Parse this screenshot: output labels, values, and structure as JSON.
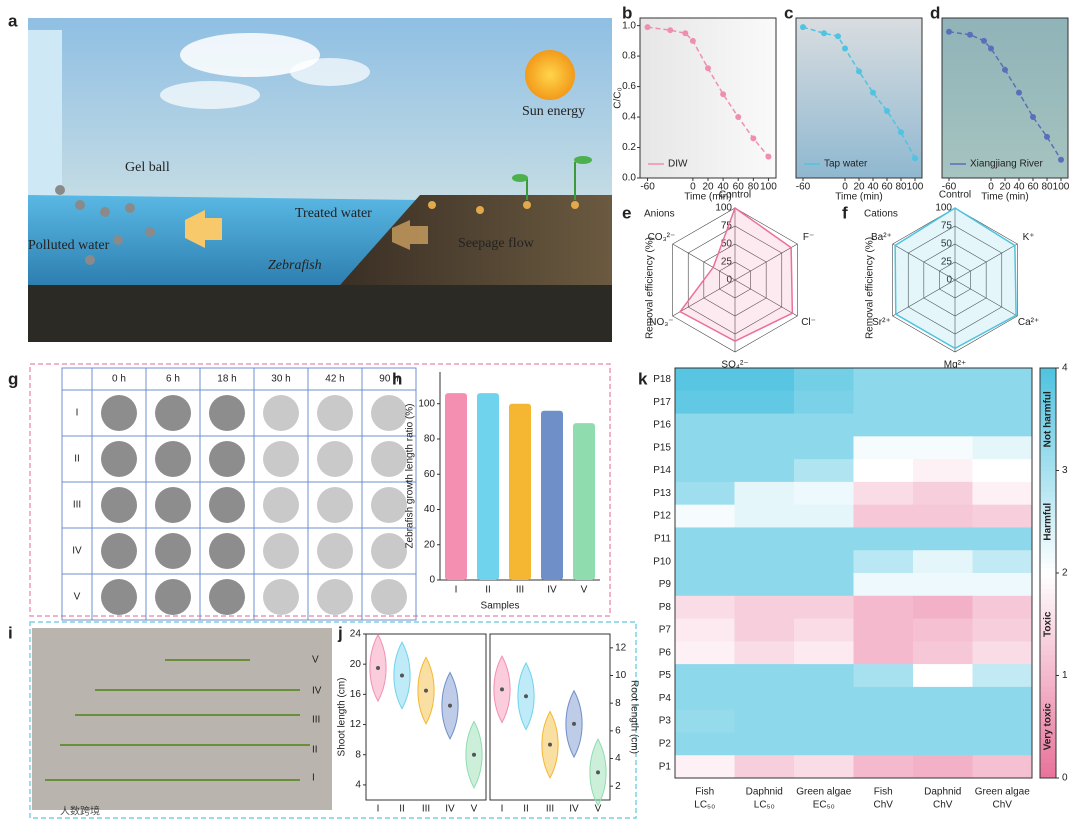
{
  "panel_a": {
    "letter": "a",
    "labels": [
      "Gel ball",
      "Treated water",
      "Sun energy",
      "Polluted water",
      "Zebrafish",
      "Seepage flow"
    ]
  },
  "panel_b": {
    "letter": "b",
    "type": "line",
    "ylabel": "C/C₀",
    "xlabel": "Time (min)",
    "xlim": [
      -70,
      110
    ],
    "ylim": [
      0,
      1.05
    ],
    "xticks": [
      -60,
      0,
      20,
      40,
      60,
      80,
      100
    ],
    "yticks": [
      {
        "value": 0,
        "label": "0.0"
      },
      {
        "value": 0.2,
        "label": "0.2"
      },
      {
        "value": 0.4,
        "label": "0.4"
      },
      {
        "value": 0.6,
        "label": "0.6"
      },
      {
        "value": 0.8,
        "label": "0.8"
      },
      {
        "value": 1,
        "label": "1.0"
      }
    ],
    "x": [
      -60,
      -30,
      -10,
      0,
      20,
      40,
      60,
      80,
      100
    ],
    "series": [
      {
        "name": "DIW",
        "color": "#ef8fb0",
        "values": [
          0.99,
          0.97,
          0.95,
          0.9,
          0.72,
          0.55,
          0.4,
          0.26,
          0.14
        ]
      }
    ]
  },
  "panel_c": {
    "letter": "c",
    "type": "line",
    "xlabel": "Time (min)",
    "xlim": [
      -70,
      110
    ],
    "ylim": [
      0,
      1.05
    ],
    "xticks": [
      -60,
      0,
      20,
      40,
      60,
      80,
      100
    ],
    "x": [
      -60,
      -30,
      -10,
      0,
      20,
      40,
      60,
      80,
      100
    ],
    "series": [
      {
        "name": "Tap water",
        "color": "#4fc3e0",
        "values": [
          0.99,
          0.95,
          0.93,
          0.85,
          0.7,
          0.56,
          0.44,
          0.3,
          0.13
        ]
      }
    ]
  },
  "panel_d": {
    "letter": "d",
    "type": "line",
    "xlabel": "Time (min)",
    "xlim": [
      -70,
      110
    ],
    "ylim": [
      0,
      1.05
    ],
    "xticks": [
      -60,
      0,
      20,
      40,
      60,
      80,
      100
    ],
    "x": [
      -60,
      -30,
      -10,
      0,
      20,
      40,
      60,
      80,
      100
    ],
    "series": [
      {
        "name": "Xiangjiang River",
        "color": "#5a6fb8",
        "values": [
          0.96,
          0.94,
          0.9,
          0.85,
          0.71,
          0.56,
          0.4,
          0.27,
          0.12
        ]
      }
    ]
  },
  "panel_e": {
    "letter": "e",
    "type": "radar",
    "title": "Anions",
    "ylabel": "Removal efficiency (%)",
    "axes": [
      "Control",
      "F⁻",
      "Cl⁻",
      "SO₄²⁻",
      "NO₃⁻",
      "CO₃²⁻"
    ],
    "rlim": [
      0,
      100
    ],
    "rticks": [
      0,
      25,
      50,
      75,
      100
    ],
    "series": [
      {
        "color": "#ec6f9a",
        "values": [
          100,
          90,
          92,
          85,
          88,
          35
        ]
      }
    ]
  },
  "panel_f": {
    "letter": "f",
    "type": "radar",
    "title": "Cations",
    "ylabel": "Removal efficiency (%)",
    "axes": [
      "Control",
      "K⁺",
      "Ca²⁺",
      "Mg²⁺",
      "Sr²⁺",
      "Ba²⁺"
    ],
    "rlim": [
      0,
      100
    ],
    "rticks": [
      0,
      25,
      50,
      75,
      100
    ],
    "series": [
      {
        "color": "#4fc3e0",
        "values": [
          100,
          96,
          98,
          95,
          95,
          96
        ]
      }
    ]
  },
  "panel_g": {
    "letter": "g",
    "columns": [
      "0 h",
      "6 h",
      "18 h",
      "30 h",
      "42 h",
      "90 h"
    ],
    "rows": [
      "I",
      "II",
      "III",
      "IV",
      "V"
    ]
  },
  "panel_h": {
    "letter": "h",
    "type": "bar",
    "ylabel": "Zebrafish growth length ratio (%)",
    "xlabel": "Samples",
    "categories": [
      "I",
      "II",
      "III",
      "IV",
      "V"
    ],
    "values": [
      106,
      106,
      100,
      96,
      89
    ],
    "colors": [
      "#f48fb1",
      "#6fd3ee",
      "#f5b731",
      "#6f8fc9",
      "#8fdcae"
    ],
    "ylim": [
      0,
      118
    ],
    "yticks": [
      0,
      20,
      40,
      60,
      80,
      100
    ]
  },
  "panel_i": {
    "letter": "i",
    "labels": [
      "V",
      "IV",
      "III",
      "II",
      "I"
    ]
  },
  "panel_j": {
    "letter": "j",
    "type": "violin",
    "categories": [
      "I",
      "II",
      "III",
      "IV",
      "V"
    ],
    "colors": [
      "#f48fb1",
      "#6fd3ee",
      "#f5b731",
      "#6f8fc9",
      "#8fdcae"
    ],
    "shoot": {
      "ylabel": "Shoot length (cm)",
      "ylim": [
        2,
        24
      ],
      "yticks": [
        4,
        8,
        12,
        16,
        20,
        24
      ],
      "values": [
        19.5,
        18.5,
        16.5,
        14.5,
        8
      ]
    },
    "root": {
      "ylabel": "Root length (cm)",
      "ylim": [
        1,
        13
      ],
      "yticks": [
        2,
        4,
        6,
        8,
        10,
        12
      ],
      "values": [
        9,
        8.5,
        5,
        6.5,
        3
      ]
    }
  },
  "panel_k": {
    "letter": "k",
    "type": "heatmap",
    "rows": [
      "P18",
      "P17",
      "P16",
      "P15",
      "P14",
      "P13",
      "P12",
      "P11",
      "P10",
      "P9",
      "P8",
      "P7",
      "P6",
      "P5",
      "P4",
      "P3",
      "P2",
      "P1"
    ],
    "columns": [
      [
        "Fish",
        "LC₅₀"
      ],
      [
        "Daphnid",
        "LC₅₀"
      ],
      [
        "Green algae",
        "EC₅₀"
      ],
      [
        "Fish",
        "ChV"
      ],
      [
        "Daphnid",
        "ChV"
      ],
      [
        "Green algae",
        "ChV"
      ]
    ],
    "values": [
      [
        3.9,
        3.9,
        3.6,
        3.3,
        3.3,
        3.3
      ],
      [
        3.8,
        3.8,
        3.5,
        3.3,
        3.3,
        3.3
      ],
      [
        3.3,
        3.3,
        3.3,
        3.3,
        3.3,
        3.3
      ],
      [
        3.3,
        3.3,
        3.3,
        2.1,
        2.1,
        2.3
      ],
      [
        3.3,
        3.3,
        2.9,
        2.0,
        1.8,
        2.0
      ],
      [
        3.1,
        2.3,
        2.2,
        1.5,
        1.3,
        1.8
      ],
      [
        2.1,
        2.3,
        2.3,
        1.2,
        1.2,
        1.3
      ],
      [
        3.3,
        3.3,
        3.3,
        3.3,
        3.3,
        3.3
      ],
      [
        3.3,
        3.3,
        3.3,
        2.8,
        2.3,
        2.7
      ],
      [
        3.3,
        3.3,
        3.3,
        2.2,
        2.2,
        2.2
      ],
      [
        1.5,
        1.3,
        1.3,
        1.0,
        0.9,
        1.2
      ],
      [
        1.7,
        1.3,
        1.5,
        1.0,
        1.1,
        1.3
      ],
      [
        1.8,
        1.5,
        1.7,
        1.0,
        1.2,
        1.5
      ],
      [
        3.3,
        3.3,
        3.3,
        3.0,
        2.0,
        2.7
      ],
      [
        3.3,
        3.3,
        3.3,
        3.3,
        3.3,
        3.3
      ],
      [
        3.2,
        3.3,
        3.3,
        3.3,
        3.3,
        3.3
      ],
      [
        3.3,
        3.3,
        3.3,
        3.3,
        3.3,
        3.3
      ],
      [
        1.8,
        1.3,
        1.5,
        1.0,
        0.9,
        1.1
      ]
    ],
    "clim": [
      0,
      4
    ],
    "cticks": [
      0,
      1,
      2,
      3,
      4
    ],
    "colors": [
      "#e8729a",
      "#ffffff",
      "#4fc3e0"
    ],
    "clabels": [
      "Very toxic",
      "Toxic",
      "Harmful",
      "Not harmful"
    ]
  },
  "watermark": "人数跨境"
}
